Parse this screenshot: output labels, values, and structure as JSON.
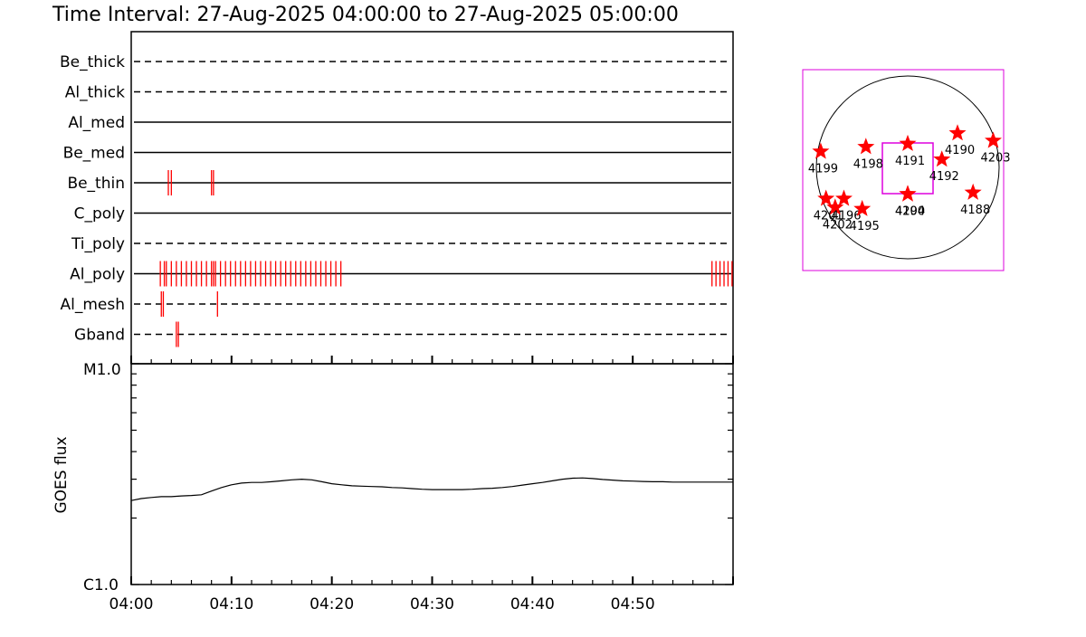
{
  "title": "Time Interval: 27-Aug-2025 04:00:00 to 27-Aug-2025 05:00:00",
  "colors": {
    "accent": "#ff0000",
    "fov_box": "#dd00dd",
    "line": "#000000"
  },
  "chart_data": [
    {
      "type": "timeline",
      "x_range_minutes": [
        0,
        60
      ],
      "x_tick_labels": [
        "04:00",
        "04:10",
        "04:20",
        "04:30",
        "04:40",
        "04:50"
      ],
      "x_tick_minutes": [
        0,
        10,
        20,
        30,
        40,
        50
      ],
      "filters": [
        {
          "name": "Be_thick",
          "style": "dashed",
          "obs_minutes": []
        },
        {
          "name": "Al_thick",
          "style": "dashed",
          "obs_minutes": []
        },
        {
          "name": "Al_med",
          "style": "solid",
          "obs_minutes": []
        },
        {
          "name": "Be_med",
          "style": "solid",
          "obs_minutes": []
        },
        {
          "name": "Be_thin",
          "style": "solid",
          "obs_minutes": [
            3.7,
            4.0,
            8.0,
            8.2
          ]
        },
        {
          "name": "C_poly",
          "style": "solid",
          "obs_minutes": []
        },
        {
          "name": "Ti_poly",
          "style": "dashed",
          "obs_minutes": []
        },
        {
          "name": "Al_poly",
          "style": "solid",
          "obs_minutes": [
            2.9,
            3.3,
            3.5,
            4.0,
            4.5,
            5.0,
            5.5,
            6.0,
            6.5,
            7.0,
            7.5,
            8.0,
            8.2,
            8.4,
            8.9,
            9.4,
            9.9,
            10.4,
            10.9,
            11.4,
            11.9,
            12.4,
            12.9,
            13.4,
            13.9,
            14.4,
            14.9,
            15.4,
            15.9,
            16.4,
            16.9,
            17.4,
            17.9,
            18.4,
            18.9,
            19.4,
            19.9,
            20.4,
            20.9,
            57.9,
            58.3,
            58.7,
            59.1,
            59.5,
            59.9
          ]
        },
        {
          "name": "Al_mesh",
          "style": "dashed",
          "obs_minutes": [
            3.0,
            3.2,
            8.6
          ]
        },
        {
          "name": "Gband",
          "style": "dashed",
          "obs_minutes": [
            4.5,
            4.7
          ]
        }
      ]
    },
    {
      "type": "line",
      "ylabel": "GOES flux",
      "y_scale": "log",
      "y_tick_labels": [
        "M1.0",
        "C1.0"
      ],
      "ylim_wm2": [
        1e-06,
        1e-05
      ],
      "x_range_minutes": [
        0,
        60
      ],
      "x_tick_labels": [
        "04:00",
        "04:10",
        "04:20",
        "04:30",
        "04:40",
        "04:50"
      ],
      "x_tick_minutes": [
        0,
        10,
        20,
        30,
        40,
        50
      ],
      "x": [
        0,
        1,
        2,
        3,
        4,
        5,
        6,
        7,
        8,
        9,
        10,
        11,
        12,
        13,
        14,
        15,
        16,
        17,
        18,
        19,
        20,
        21,
        22,
        23,
        24,
        25,
        26,
        27,
        28,
        29,
        30,
        31,
        32,
        33,
        34,
        35,
        36,
        37,
        38,
        39,
        40,
        41,
        42,
        43,
        44,
        45,
        46,
        47,
        48,
        49,
        50,
        51,
        52,
        53,
        54,
        55,
        56,
        57,
        58,
        59,
        60
      ],
      "y": [
        2.4e-06,
        2.45e-06,
        2.48e-06,
        2.5e-06,
        2.5e-06,
        2.52e-06,
        2.53e-06,
        2.55e-06,
        2.65e-06,
        2.75e-06,
        2.83e-06,
        2.88e-06,
        2.9e-06,
        2.9e-06,
        2.92e-06,
        2.95e-06,
        2.98e-06,
        3e-06,
        2.98e-06,
        2.92e-06,
        2.86e-06,
        2.83e-06,
        2.8e-06,
        2.79e-06,
        2.78e-06,
        2.77e-06,
        2.75e-06,
        2.74e-06,
        2.72e-06,
        2.7e-06,
        2.69e-06,
        2.69e-06,
        2.69e-06,
        2.69e-06,
        2.7e-06,
        2.72e-06,
        2.73e-06,
        2.75e-06,
        2.78e-06,
        2.82e-06,
        2.86e-06,
        2.9e-06,
        2.95e-06,
        3e-06,
        3.03e-06,
        3.04e-06,
        3.02e-06,
        2.99e-06,
        2.97e-06,
        2.95e-06,
        2.94e-06,
        2.93e-06,
        2.92e-06,
        2.92e-06,
        2.91e-06,
        2.91e-06,
        2.91e-06,
        2.91e-06,
        2.91e-06,
        2.91e-06,
        2.91e-06
      ]
    },
    {
      "type": "scatter",
      "description_hidden": false,
      "regions": [
        {
          "label": "4199",
          "lon": -75,
          "lat": 10
        },
        {
          "label": "4198",
          "lon": -28,
          "lat": 13
        },
        {
          "label": "4191",
          "lon": 0,
          "lat": 15
        },
        {
          "label": "4190",
          "lon": 36,
          "lat": 22
        },
        {
          "label": "4203",
          "lon": 78,
          "lat": 17
        },
        {
          "label": "4192",
          "lon": 22,
          "lat": 5
        },
        {
          "label": "4194",
          "lon": 0,
          "lat": -17
        },
        {
          "label": "4200",
          "lon": 0,
          "lat": -17
        },
        {
          "label": "4188",
          "lon": 48,
          "lat": -16
        },
        {
          "label": "4201",
          "lon": -72,
          "lat": -20
        },
        {
          "label": "4202",
          "lon": -62,
          "lat": -26
        },
        {
          "label": "4196",
          "lon": -48,
          "lat": -20
        },
        {
          "label": "4195",
          "lon": -34,
          "lat": -27
        }
      ]
    }
  ]
}
